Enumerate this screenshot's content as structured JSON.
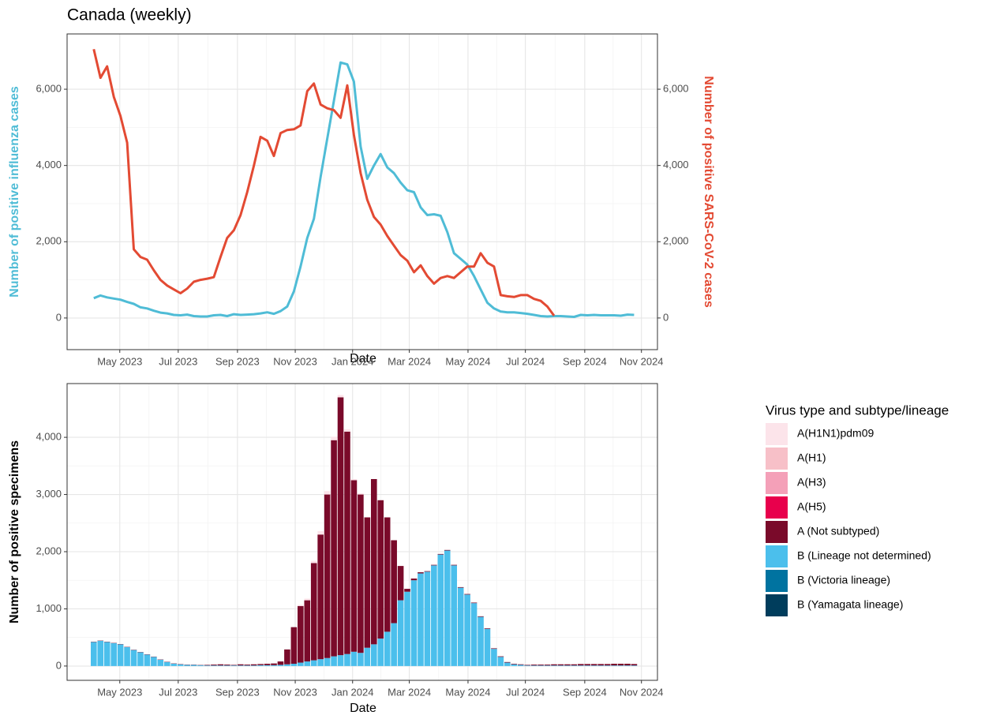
{
  "chart_data": [
    {
      "type": "line",
      "title": "Canada (weekly)",
      "xlabel": "Date",
      "ylabel": "Number of positive influenza cases",
      "y2label": "Number of positive SARS-CoV-2 cases",
      "categories": [
        null,
        null,
        null,
        null,
        null,
        null,
        null,
        null,
        null,
        null,
        null,
        null,
        null,
        null,
        null,
        null,
        null,
        null,
        null,
        null,
        null,
        null,
        null,
        null,
        null,
        null,
        null,
        null,
        null,
        null,
        null,
        null,
        null,
        null,
        null,
        null,
        null,
        null,
        null,
        null,
        null,
        null,
        null,
        null,
        null,
        null,
        null,
        null,
        null,
        null,
        null,
        null,
        null,
        null,
        null,
        null,
        null,
        null,
        null,
        null,
        null,
        null,
        null,
        null,
        null,
        null,
        null,
        null,
        null,
        null,
        null,
        null,
        null,
        null,
        null,
        null,
        null,
        null,
        null,
        null,
        null,
        null
      ],
      "xlim": [
        -4,
        84.5
      ],
      "xticks": [
        {
          "value": 3.9,
          "label": "May 2023"
        },
        {
          "value": 12.66,
          "label": "Jul 2023"
        },
        {
          "value": 21.54,
          "label": "Sep 2023"
        },
        {
          "value": 30.2,
          "label": "Nov 2023"
        },
        {
          "value": 38.8,
          "label": "Jan 2024"
        },
        {
          "value": 47.3,
          "label": "Mar 2024"
        },
        {
          "value": 56.1,
          "label": "May 2024"
        },
        {
          "value": 64.7,
          "label": "Jul 2024"
        },
        {
          "value": 73.6,
          "label": "Sep 2024"
        },
        {
          "value": 82.1,
          "label": "Nov 2024"
        }
      ],
      "ylim": [
        -830,
        7450
      ],
      "yticks": [
        0,
        {
          "value": 2000,
          "label": "2,000"
        },
        {
          "value": 4000,
          "label": "4,000"
        },
        {
          "value": 6000,
          "label": "6,000"
        }
      ],
      "y2lim": [
        -830,
        7450
      ],
      "y2ticks": [
        0,
        {
          "value": 2000,
          "label": "2,000"
        },
        {
          "value": 4000,
          "label": "4,000"
        },
        {
          "value": 6000,
          "label": "6,000"
        }
      ],
      "grid": true,
      "series": [
        {
          "name": "Influenza",
          "color": "#4fbcd6",
          "values": [
            520,
            590,
            540,
            510,
            480,
            420,
            370,
            280,
            250,
            190,
            140,
            120,
            80,
            70,
            90,
            50,
            40,
            40,
            70,
            80,
            50,
            100,
            80,
            90,
            100,
            120,
            150,
            110,
            180,
            300,
            700,
            1350,
            2100,
            2600,
            3700,
            4700,
            5700,
            6700,
            6650,
            6200,
            4500,
            3650,
            4000,
            4300,
            3950,
            3800,
            3550,
            3350,
            3300,
            2900,
            2700,
            2720,
            2680,
            2250,
            1700,
            1550,
            1400,
            1100,
            750,
            400,
            250,
            170,
            150,
            150,
            130,
            110,
            80,
            50,
            40,
            50,
            50,
            40,
            30,
            80,
            70,
            80,
            70,
            70,
            70,
            60,
            90,
            80
          ]
        },
        {
          "name": "SARS-CoV-2",
          "color": "#e34a33",
          "axis": "y2",
          "values": [
            7050,
            6300,
            6600,
            5800,
            5300,
            4600,
            1800,
            1600,
            1530,
            1250,
            1000,
            850,
            750,
            650,
            770,
            950,
            1000,
            1030,
            1070,
            1600,
            2100,
            2300,
            2700,
            3300,
            4000,
            4750,
            4650,
            4250,
            4850,
            4930,
            4950,
            5050,
            5950,
            6150,
            5600,
            5500,
            5450,
            5250,
            6100,
            4800,
            3800,
            3100,
            2650,
            2450,
            2150,
            1900,
            1650,
            1500,
            1200,
            1380,
            1100,
            900,
            1050,
            1100,
            1050,
            1200,
            1350,
            1350,
            1700,
            1450,
            1350,
            600,
            570,
            550,
            600,
            600,
            500,
            450,
            300,
            60,
            null,
            null,
            null,
            null,
            null,
            null,
            null,
            null,
            null,
            null,
            null,
            null
          ]
        }
      ]
    },
    {
      "type": "bar",
      "stacked": true,
      "xlabel": "Date",
      "ylabel": "Number of positive specimens",
      "legend_title": "Virus type and subtype/lineage",
      "legend": "right",
      "categories": [
        null,
        null,
        null,
        null,
        null,
        null,
        null,
        null,
        null,
        null,
        null,
        null,
        null,
        null,
        null,
        null,
        null,
        null,
        null,
        null,
        null,
        null,
        null,
        null,
        null,
        null,
        null,
        null,
        null,
        null,
        null,
        null,
        null,
        null,
        null,
        null,
        null,
        null,
        null,
        null,
        null,
        null,
        null,
        null,
        null,
        null,
        null,
        null,
        null,
        null,
        null,
        null,
        null,
        null,
        null,
        null,
        null,
        null,
        null,
        null,
        null,
        null,
        null,
        null,
        null,
        null,
        null,
        null,
        null,
        null,
        null,
        null,
        null,
        null,
        null,
        null,
        null,
        null,
        null,
        null,
        null,
        null
      ],
      "xlim": [
        -4,
        84.5
      ],
      "xticks": [
        {
          "value": 3.9,
          "label": "May 2023"
        },
        {
          "value": 12.66,
          "label": "Jul 2023"
        },
        {
          "value": 21.54,
          "label": "Sep 2023"
        },
        {
          "value": 30.2,
          "label": "Nov 2023"
        },
        {
          "value": 38.8,
          "label": "Jan 2024"
        },
        {
          "value": 47.3,
          "label": "Mar 2024"
        },
        {
          "value": 56.1,
          "label": "May 2024"
        },
        {
          "value": 64.7,
          "label": "Jul 2024"
        },
        {
          "value": 73.6,
          "label": "Sep 2024"
        },
        {
          "value": 82.1,
          "label": "Nov 2024"
        }
      ],
      "ylim": [
        -250,
        4940
      ],
      "yticks": [
        0,
        {
          "value": 1000,
          "label": "1,000"
        },
        {
          "value": 2000,
          "label": "2,000"
        },
        {
          "value": 3000,
          "label": "3,000"
        },
        {
          "value": 4000,
          "label": "4,000"
        }
      ],
      "grid": true,
      "series": [
        {
          "name": "A(H1N1)pdm09",
          "color": "#fce4ea",
          "values": [
            0,
            0,
            0,
            0,
            0,
            0,
            0,
            0,
            0,
            0,
            0,
            0,
            0,
            0,
            0,
            0,
            0,
            0,
            0,
            0,
            0,
            0,
            0,
            0,
            0,
            0,
            0,
            0,
            0,
            0,
            0,
            20,
            30,
            40,
            60,
            60,
            60,
            40,
            40,
            20,
            20,
            0,
            0,
            0,
            0,
            0,
            0,
            0,
            0,
            0,
            0,
            0,
            0,
            0,
            0,
            0,
            0,
            0,
            0,
            0,
            0,
            0,
            0,
            0,
            0,
            0,
            0,
            0,
            0,
            0,
            0,
            0,
            0,
            0,
            0,
            0,
            0,
            0,
            0,
            0,
            0,
            0
          ]
        },
        {
          "name": "A(H1)",
          "color": "#f7c0c8",
          "values": [
            0,
            0,
            0,
            0,
            0,
            0,
            0,
            0,
            0,
            0,
            0,
            0,
            0,
            0,
            0,
            0,
            0,
            0,
            0,
            0,
            0,
            0,
            0,
            0,
            0,
            0,
            0,
            0,
            0,
            0,
            0,
            0,
            0,
            0,
            0,
            0,
            0,
            0,
            0,
            0,
            0,
            0,
            0,
            0,
            0,
            0,
            0,
            0,
            0,
            0,
            0,
            0,
            0,
            0,
            0,
            0,
            0,
            0,
            0,
            0,
            0,
            0,
            0,
            0,
            0,
            0,
            0,
            0,
            0,
            0,
            0,
            0,
            0,
            0,
            0,
            0,
            0,
            0,
            0,
            0,
            0,
            0
          ]
        },
        {
          "name": "A(H3)",
          "color": "#f4a0b8",
          "values": [
            0,
            0,
            0,
            0,
            0,
            0,
            0,
            0,
            0,
            0,
            0,
            0,
            0,
            0,
            0,
            0,
            0,
            0,
            0,
            0,
            0,
            0,
            0,
            0,
            0,
            0,
            0,
            0,
            0,
            0,
            0,
            0,
            0,
            0,
            0,
            0,
            0,
            0,
            0,
            0,
            0,
            0,
            0,
            0,
            0,
            0,
            0,
            0,
            0,
            0,
            0,
            0,
            0,
            0,
            0,
            0,
            0,
            0,
            0,
            0,
            0,
            0,
            0,
            0,
            0,
            0,
            0,
            0,
            0,
            0,
            0,
            0,
            0,
            0,
            0,
            0,
            0,
            0,
            0,
            0,
            0,
            0
          ]
        },
        {
          "name": "A(H5)",
          "color": "#e8004c",
          "values": [
            0,
            0,
            0,
            0,
            0,
            0,
            0,
            0,
            0,
            0,
            0,
            0,
            0,
            0,
            0,
            0,
            0,
            0,
            0,
            0,
            0,
            0,
            0,
            0,
            0,
            0,
            0,
            0,
            0,
            0,
            0,
            0,
            0,
            0,
            0,
            0,
            0,
            0,
            0,
            0,
            0,
            0,
            0,
            0,
            0,
            0,
            0,
            0,
            0,
            0,
            0,
            0,
            0,
            0,
            0,
            0,
            0,
            0,
            0,
            0,
            0,
            0,
            0,
            0,
            0,
            0,
            0,
            0,
            0,
            0,
            0,
            0,
            0,
            0,
            0,
            0,
            0,
            0,
            0,
            0,
            0,
            0
          ]
        },
        {
          "name": "A (Not subtyped)",
          "color": "#7a0a2a",
          "values": [
            5,
            5,
            5,
            5,
            5,
            5,
            5,
            5,
            5,
            5,
            5,
            5,
            5,
            5,
            5,
            5,
            5,
            10,
            15,
            20,
            15,
            10,
            20,
            15,
            20,
            20,
            25,
            30,
            60,
            260,
            640,
            990,
            1070,
            1700,
            2180,
            2860,
            3780,
            4510,
            3890,
            3000,
            2770,
            2280,
            2890,
            2420,
            2000,
            1450,
            600,
            50,
            30,
            20,
            10,
            10,
            10,
            10,
            10,
            10,
            10,
            10,
            10,
            10,
            10,
            10,
            10,
            10,
            10,
            10,
            15,
            15,
            15,
            20,
            20,
            20,
            20,
            25,
            25,
            25,
            25,
            25,
            30,
            30,
            30,
            25
          ]
        },
        {
          "name": "B (Lineage not determined)",
          "color": "#4bbfec",
          "values": [
            420,
            440,
            420,
            400,
            380,
            330,
            280,
            240,
            200,
            160,
            110,
            70,
            40,
            30,
            20,
            20,
            15,
            10,
            10,
            10,
            10,
            10,
            10,
            10,
            10,
            15,
            15,
            15,
            20,
            30,
            40,
            60,
            80,
            100,
            120,
            140,
            170,
            190,
            210,
            250,
            230,
            320,
            380,
            480,
            600,
            750,
            1150,
            1300,
            1500,
            1620,
            1650,
            1760,
            1950,
            2020,
            1760,
            1370,
            1250,
            1100,
            860,
            650,
            300,
            160,
            60,
            30,
            20,
            10,
            10,
            10,
            10,
            10,
            10,
            10,
            10,
            10,
            10,
            10,
            10,
            10,
            10,
            10,
            10,
            10
          ]
        },
        {
          "name": "B (Victoria lineage)",
          "color": "#0073a0",
          "values": [
            0,
            0,
            0,
            0,
            0,
            0,
            0,
            0,
            0,
            0,
            0,
            0,
            0,
            0,
            0,
            0,
            0,
            0,
            0,
            0,
            0,
            0,
            0,
            0,
            0,
            0,
            0,
            0,
            0,
            0,
            0,
            0,
            0,
            0,
            0,
            0,
            0,
            0,
            0,
            0,
            0,
            0,
            0,
            0,
            0,
            0,
            0,
            0,
            0,
            0,
            0,
            0,
            0,
            0,
            0,
            0,
            0,
            0,
            0,
            0,
            0,
            0,
            0,
            0,
            0,
            0,
            0,
            0,
            0,
            0,
            0,
            0,
            0,
            0,
            0,
            0,
            0,
            0,
            0,
            0,
            0,
            0
          ]
        },
        {
          "name": "B (Yamagata lineage)",
          "color": "#003d5c",
          "values": [
            0,
            0,
            0,
            0,
            0,
            0,
            0,
            0,
            0,
            0,
            0,
            0,
            0,
            0,
            0,
            0,
            0,
            0,
            0,
            0,
            0,
            0,
            0,
            0,
            0,
            0,
            0,
            0,
            0,
            0,
            0,
            0,
            0,
            0,
            0,
            0,
            0,
            0,
            0,
            0,
            0,
            0,
            0,
            0,
            0,
            0,
            0,
            0,
            0,
            0,
            0,
            0,
            0,
            0,
            0,
            0,
            0,
            0,
            0,
            0,
            0,
            0,
            0,
            0,
            0,
            0,
            0,
            0,
            0,
            0,
            0,
            0,
            0,
            0,
            0,
            0,
            0,
            0,
            0,
            0,
            0,
            0
          ]
        }
      ]
    }
  ]
}
